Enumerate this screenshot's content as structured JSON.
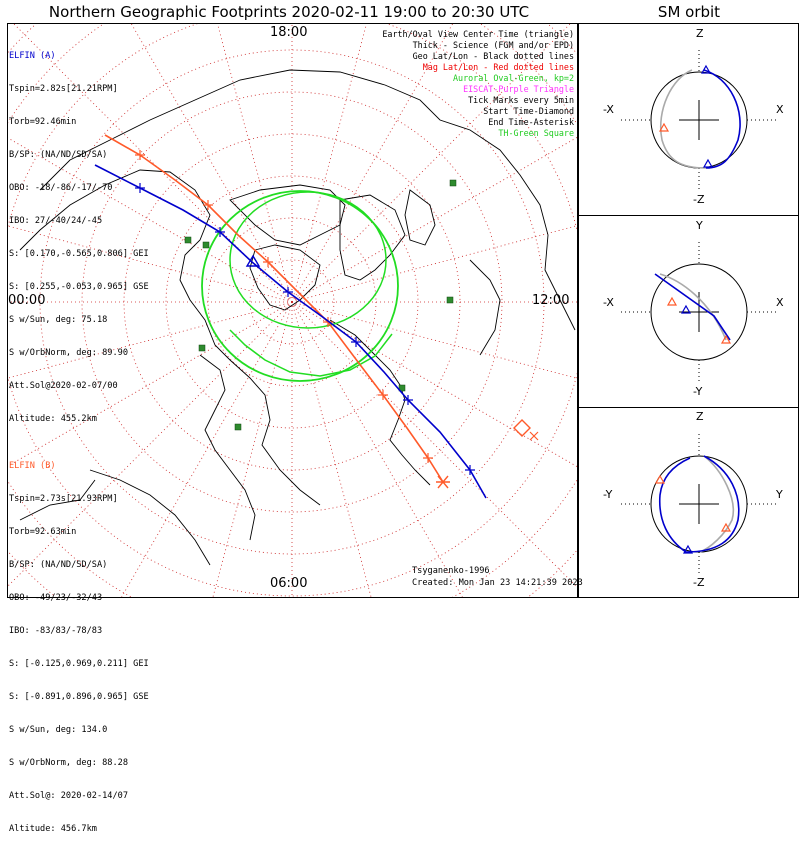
{
  "title": "Northern Geographic Footprints 2020-02-11 19:00 to 20:30 UTC",
  "sm_title": "SM orbit",
  "colors": {
    "a": "#0000cc",
    "b": "#ff5a2a",
    "oval": "#22dd22",
    "grid": "#cc2222",
    "coast": "#000000",
    "gray": "#aaaaaa",
    "station": "#2e8b2e",
    "purple": "#ff33ff"
  },
  "map": {
    "time_labels": {
      "top": "18:00",
      "left": "00:00",
      "right": "12:00",
      "bottom": "06:00"
    }
  },
  "elfin_a": {
    "name": "ELFIN (A)",
    "lines": [
      "Tspin=2.82s[21.21RPM]",
      "Torb=92.46min",
      "B/SP: (NA/ND/SD/SA)",
      "OBO: -18/-86/-17/-70",
      "IBO: 27/-40/24/-45",
      "S: [0.170,-0.565,0.806] GEI",
      "S: [0.255,-0.053,0.965] GSE",
      "S w/Sun, deg: 75.18",
      "S w/OrbNorm, deg: 89.90",
      "Att.Sol@2020-02-07/00",
      "Altitude: 455.2km"
    ]
  },
  "elfin_b": {
    "name": "ELFIN (B)",
    "lines": [
      "Tspin=2.73s[21.93RPM]",
      "Torb=92.63min",
      "B/SP: (NA/ND/SD/SA)",
      "OBO: -49/23/-32/43",
      "IBO: -83/83/-78/83",
      "S: [-0.125,0.969,0.211] GEI",
      "S: [-0.891,0.896,0.965] GSE",
      "S w/Sun, deg: 134.0",
      "S w/OrbNorm, deg: 88.28",
      "Att.Sol@: 2020-02-14/07",
      "Altitude: 456.7km"
    ]
  },
  "legend": [
    {
      "text": "Earth/Oval View Center Time (triangle)",
      "color": "#000000"
    },
    {
      "text": "Thick - Science (FGM and/or EPD)",
      "color": "#000000"
    },
    {
      "text": "Geo Lat/Lon - Black dotted lines",
      "color": "#000000"
    },
    {
      "text": "Mag Lat/Lon - Red dotted lines",
      "color": "#ee0000"
    },
    {
      "text": "Auroral Oval-Green, kp=2",
      "color": "#22cc22"
    },
    {
      "text": "EISCAT-Purple Triangle",
      "color": "#ff33ff"
    },
    {
      "text": "Tick Marks every 5min",
      "color": "#000000"
    },
    {
      "text": "Start Time-Diamond",
      "color": "#000000"
    },
    {
      "text": "End Time-Asterisk",
      "color": "#000000"
    },
    {
      "text": "TH-Green Square",
      "color": "#22cc22"
    }
  ],
  "credit": {
    "author": "Tsyganenko-1996",
    "created": "Created: Mon Jan 23 14:21:39 2023"
  },
  "sm_panels": [
    {
      "top": "Z",
      "bottom": "-Z",
      "left": "-X",
      "right": "X"
    },
    {
      "top": "Y",
      "bottom": "-Y",
      "left": "-X",
      "right": "X"
    },
    {
      "top": "Z",
      "bottom": "-Z",
      "left": "-Y",
      "right": "Y"
    }
  ]
}
